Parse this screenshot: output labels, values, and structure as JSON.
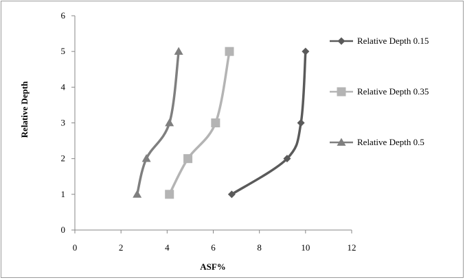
{
  "chart_data": {
    "type": "line",
    "title": "",
    "xlabel": "ASF%",
    "ylabel": "Relative Depth",
    "xlim": [
      0,
      12
    ],
    "ylim": [
      0,
      6
    ],
    "xticks": [
      0,
      2,
      4,
      6,
      8,
      10,
      12
    ],
    "yticks": [
      0,
      1,
      2,
      3,
      4,
      5,
      6
    ],
    "grid": false,
    "legend_position": "right",
    "series": [
      {
        "name": "Relative Depth 0.15",
        "color": "#5a5a5a",
        "marker": "diamond",
        "points": [
          [
            6.8,
            1
          ],
          [
            9.2,
            2
          ],
          [
            9.8,
            3
          ],
          [
            10.0,
            5
          ]
        ]
      },
      {
        "name": "Relative Depth 0.35",
        "color": "#b4b4b4",
        "marker": "square",
        "points": [
          [
            4.1,
            1
          ],
          [
            4.9,
            2
          ],
          [
            6.1,
            3
          ],
          [
            6.7,
            5
          ]
        ]
      },
      {
        "name": "Relative Depth 0.5",
        "color": "#7f7f7f",
        "marker": "triangle",
        "points": [
          [
            2.7,
            1
          ],
          [
            3.1,
            2
          ],
          [
            4.1,
            3
          ],
          [
            4.5,
            5
          ]
        ]
      }
    ]
  }
}
